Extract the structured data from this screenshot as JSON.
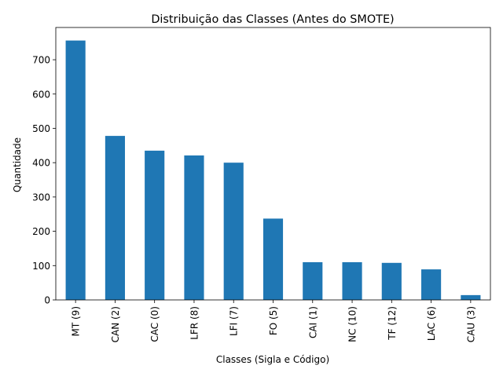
{
  "chart_data": {
    "type": "bar",
    "title": "Distribuição das Classes (Antes do SMOTE)",
    "xlabel": "Classes (Sigla e Código)",
    "ylabel": "Quantidade",
    "categories": [
      "MT (9)",
      "CAN (2)",
      "CAC (0)",
      "LFR (8)",
      "LFI (7)",
      "FO (5)",
      "CAI (1)",
      "NC (10)",
      "TF (12)",
      "LAC (6)",
      "CAU (3)"
    ],
    "values": [
      756,
      478,
      435,
      421,
      400,
      237,
      110,
      110,
      108,
      89,
      14
    ],
    "ylim": [
      0,
      794
    ],
    "yticks": [
      0,
      100,
      200,
      300,
      400,
      500,
      600,
      700
    ],
    "grid": false,
    "legend": false,
    "bar_color": "#1f77b4"
  }
}
